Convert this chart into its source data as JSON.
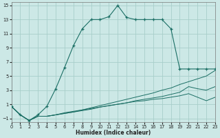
{
  "xlabel": "Humidex (Indice chaleur)",
  "background_color": "#cce8e6",
  "grid_color": "#a8ceca",
  "line_color": "#1a6e64",
  "xlim": [
    0,
    23
  ],
  "ylim": [
    -1.5,
    15.5
  ],
  "xticks": [
    0,
    1,
    2,
    3,
    4,
    5,
    6,
    7,
    8,
    9,
    10,
    11,
    12,
    13,
    14,
    15,
    16,
    17,
    18,
    19,
    20,
    21,
    22,
    23
  ],
  "yticks": [
    -1,
    1,
    3,
    5,
    7,
    9,
    11,
    13,
    15
  ],
  "main_x": [
    0,
    1,
    2,
    3,
    4,
    5,
    6,
    7,
    8,
    9,
    10,
    11,
    12,
    13,
    14,
    15,
    16,
    17,
    18,
    19,
    20,
    21,
    22,
    23
  ],
  "main_y": [
    0.7,
    -0.5,
    -1.3,
    -0.5,
    0.7,
    3.2,
    6.2,
    9.3,
    11.7,
    13.0,
    13.0,
    13.4,
    15.0,
    13.3,
    13.0,
    13.0,
    13.0,
    13.0,
    11.7,
    6.0,
    6.0,
    6.0,
    6.0,
    6.0
  ],
  "line1_x": [
    0,
    1,
    2,
    3,
    4,
    5,
    6,
    7,
    8,
    9,
    10,
    11,
    12,
    13,
    14,
    15,
    16,
    17,
    18,
    19,
    20,
    21,
    22,
    23
  ],
  "line1_y": [
    0.7,
    -0.5,
    -1.3,
    -0.7,
    -0.7,
    -0.5,
    -0.3,
    -0.1,
    0.2,
    0.5,
    0.8,
    1.1,
    1.4,
    1.7,
    2.0,
    2.3,
    2.6,
    3.0,
    3.3,
    3.8,
    4.2,
    4.6,
    5.0,
    5.8
  ],
  "line2_x": [
    0,
    1,
    2,
    3,
    4,
    5,
    6,
    7,
    8,
    9,
    10,
    11,
    12,
    13,
    14,
    15,
    16,
    17,
    18,
    19,
    20,
    21,
    22,
    23
  ],
  "line2_y": [
    0.7,
    -0.5,
    -1.3,
    -0.7,
    -0.7,
    -0.5,
    -0.3,
    -0.1,
    0.1,
    0.3,
    0.6,
    0.8,
    1.0,
    1.2,
    1.5,
    1.7,
    1.9,
    2.1,
    2.4,
    2.7,
    3.5,
    3.2,
    3.0,
    3.5
  ],
  "line3_x": [
    0,
    1,
    2,
    3,
    4,
    5,
    6,
    7,
    8,
    9,
    10,
    11,
    12,
    13,
    14,
    15,
    16,
    17,
    18,
    19,
    20,
    21,
    22,
    23
  ],
  "line3_y": [
    0.7,
    -0.5,
    -1.3,
    -0.7,
    -0.7,
    -0.5,
    -0.2,
    0.0,
    0.2,
    0.4,
    0.6,
    0.8,
    1.0,
    1.2,
    1.4,
    1.5,
    1.7,
    1.8,
    2.0,
    2.2,
    2.5,
    2.0,
    1.5,
    2.0
  ]
}
